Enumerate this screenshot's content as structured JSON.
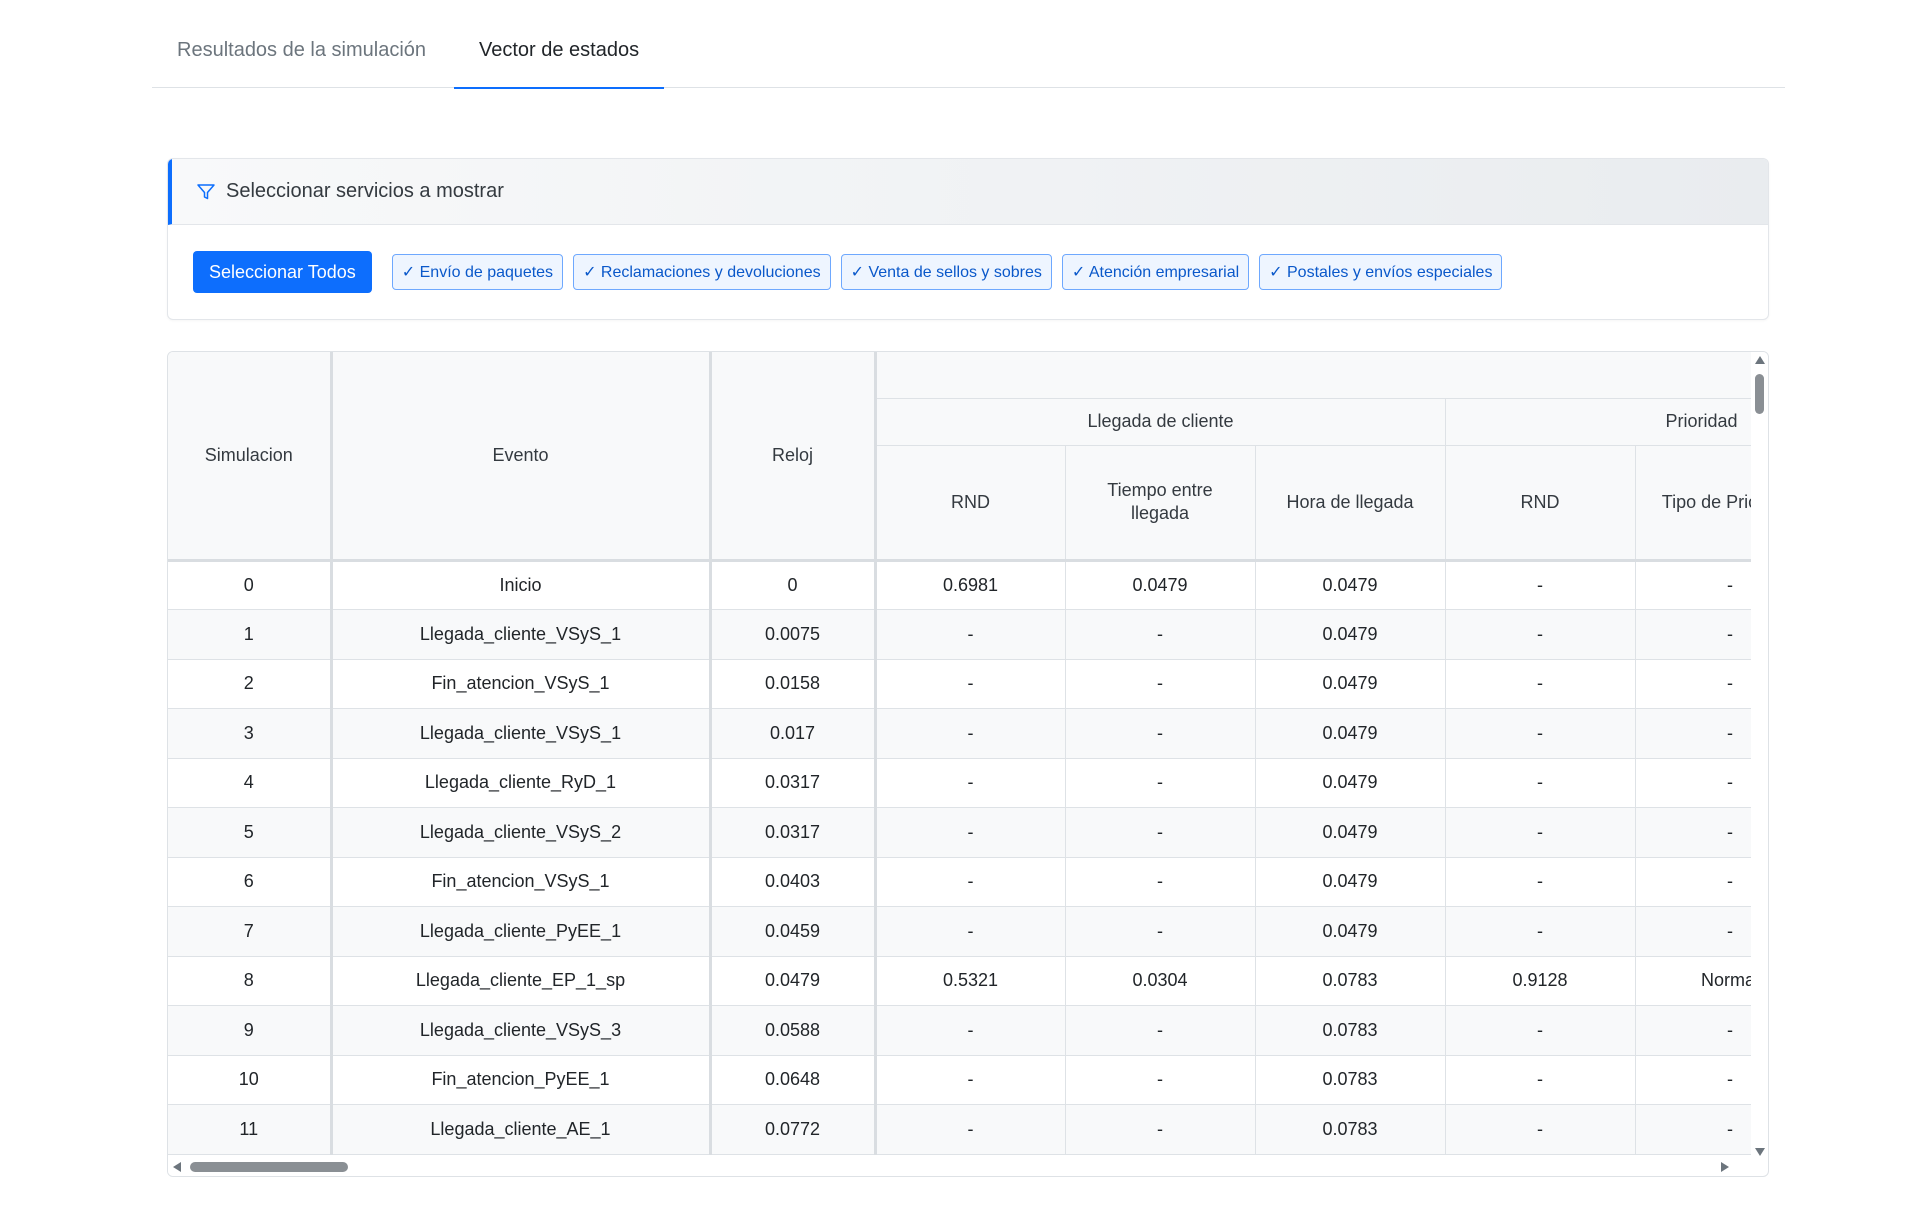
{
  "tabs": [
    {
      "label": "Resultados de la simulación",
      "active": false
    },
    {
      "label": "Vector de estados",
      "active": true
    }
  ],
  "filter": {
    "title": "Seleccionar servicios a mostrar",
    "icon": "funnel-icon",
    "select_all_label": "Seleccionar Todos",
    "services": [
      "✓ Envío de paquetes",
      "✓ Reclamaciones y devoluciones",
      "✓ Venta de sellos y sobres",
      "✓ Atención empresarial",
      "✓ Postales y envíos especiales"
    ]
  },
  "table": {
    "headers": {
      "simulacion": "Simulacion",
      "evento": "Evento",
      "reloj": "Reloj",
      "group_llegada": "Llegada de cliente",
      "group_prioridad": "Prioridad",
      "rnd": "RND",
      "tiempo_entre_llegada": "Tiempo entre llegada",
      "hora_de_llegada": "Hora de llegada",
      "rnd_prioridad": "RND",
      "tipo_prioridad": "Tipo de Prioridad"
    },
    "rows": [
      {
        "sim": "0",
        "evento": "Inicio",
        "reloj": "0",
        "rnd": "0.6981",
        "tiempo": "0.0479",
        "hora": "0.0479",
        "rnd_p": "-",
        "tipo_p": "-"
      },
      {
        "sim": "1",
        "evento": "Llegada_cliente_VSyS_1",
        "reloj": "0.0075",
        "rnd": "-",
        "tiempo": "-",
        "hora": "0.0479",
        "rnd_p": "-",
        "tipo_p": "-"
      },
      {
        "sim": "2",
        "evento": "Fin_atencion_VSyS_1",
        "reloj": "0.0158",
        "rnd": "-",
        "tiempo": "-",
        "hora": "0.0479",
        "rnd_p": "-",
        "tipo_p": "-"
      },
      {
        "sim": "3",
        "evento": "Llegada_cliente_VSyS_1",
        "reloj": "0.017",
        "rnd": "-",
        "tiempo": "-",
        "hora": "0.0479",
        "rnd_p": "-",
        "tipo_p": "-"
      },
      {
        "sim": "4",
        "evento": "Llegada_cliente_RyD_1",
        "reloj": "0.0317",
        "rnd": "-",
        "tiempo": "-",
        "hora": "0.0479",
        "rnd_p": "-",
        "tipo_p": "-"
      },
      {
        "sim": "5",
        "evento": "Llegada_cliente_VSyS_2",
        "reloj": "0.0317",
        "rnd": "-",
        "tiempo": "-",
        "hora": "0.0479",
        "rnd_p": "-",
        "tipo_p": "-"
      },
      {
        "sim": "6",
        "evento": "Fin_atencion_VSyS_1",
        "reloj": "0.0403",
        "rnd": "-",
        "tiempo": "-",
        "hora": "0.0479",
        "rnd_p": "-",
        "tipo_p": "-"
      },
      {
        "sim": "7",
        "evento": "Llegada_cliente_PyEE_1",
        "reloj": "0.0459",
        "rnd": "-",
        "tiempo": "-",
        "hora": "0.0479",
        "rnd_p": "-",
        "tipo_p": "-"
      },
      {
        "sim": "8",
        "evento": "Llegada_cliente_EP_1_sp",
        "reloj": "0.0479",
        "rnd": "0.5321",
        "tiempo": "0.0304",
        "hora": "0.0783",
        "rnd_p": "0.9128",
        "tipo_p": "Normal"
      },
      {
        "sim": "9",
        "evento": "Llegada_cliente_VSyS_3",
        "reloj": "0.0588",
        "rnd": "-",
        "tiempo": "-",
        "hora": "0.0783",
        "rnd_p": "-",
        "tipo_p": "-"
      },
      {
        "sim": "10",
        "evento": "Fin_atencion_PyEE_1",
        "reloj": "0.0648",
        "rnd": "-",
        "tiempo": "-",
        "hora": "0.0783",
        "rnd_p": "-",
        "tipo_p": "-"
      },
      {
        "sim": "11",
        "evento": "Llegada_cliente_AE_1",
        "reloj": "0.0772",
        "rnd": "-",
        "tiempo": "-",
        "hora": "0.0783",
        "rnd_p": "-",
        "tipo_p": "-"
      }
    ]
  }
}
